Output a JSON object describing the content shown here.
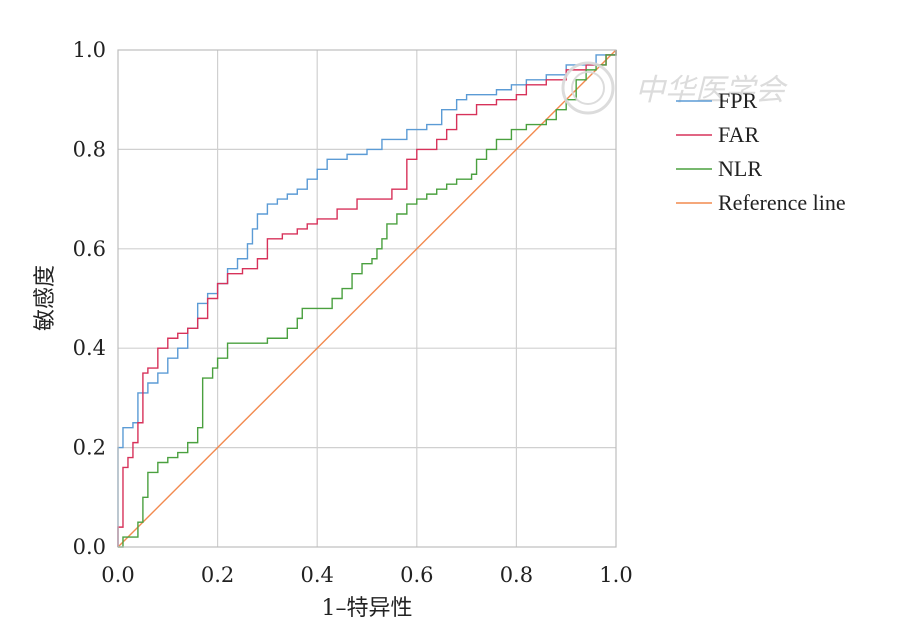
{
  "chart_data": {
    "type": "line",
    "xlabel": "1–特异性",
    "ylabel": "敏感度",
    "xlim": [
      0,
      1
    ],
    "ylim": [
      0,
      1
    ],
    "xticks": [
      "0.0",
      "0.2",
      "0.4",
      "0.6",
      "0.8",
      "1.0"
    ],
    "yticks": [
      "0.0",
      "0.2",
      "0.4",
      "0.6",
      "0.8",
      "1.0"
    ],
    "grid": true,
    "legend_position": "right",
    "series": [
      {
        "name": "FPR",
        "color": "#5b9bd5",
        "step": true,
        "points": [
          [
            0,
            0
          ],
          [
            0,
            0.2
          ],
          [
            0.01,
            0.24
          ],
          [
            0.03,
            0.25
          ],
          [
            0.04,
            0.31
          ],
          [
            0.06,
            0.33
          ],
          [
            0.08,
            0.35
          ],
          [
            0.1,
            0.38
          ],
          [
            0.12,
            0.4
          ],
          [
            0.14,
            0.44
          ],
          [
            0.16,
            0.49
          ],
          [
            0.18,
            0.51
          ],
          [
            0.2,
            0.53
          ],
          [
            0.22,
            0.56
          ],
          [
            0.24,
            0.58
          ],
          [
            0.26,
            0.61
          ],
          [
            0.27,
            0.64
          ],
          [
            0.28,
            0.67
          ],
          [
            0.3,
            0.69
          ],
          [
            0.32,
            0.7
          ],
          [
            0.34,
            0.71
          ],
          [
            0.36,
            0.72
          ],
          [
            0.38,
            0.74
          ],
          [
            0.4,
            0.76
          ],
          [
            0.42,
            0.78
          ],
          [
            0.46,
            0.79
          ],
          [
            0.5,
            0.8
          ],
          [
            0.53,
            0.82
          ],
          [
            0.58,
            0.84
          ],
          [
            0.62,
            0.85
          ],
          [
            0.65,
            0.88
          ],
          [
            0.68,
            0.9
          ],
          [
            0.7,
            0.91
          ],
          [
            0.76,
            0.92
          ],
          [
            0.79,
            0.93
          ],
          [
            0.82,
            0.94
          ],
          [
            0.86,
            0.95
          ],
          [
            0.9,
            0.97
          ],
          [
            0.96,
            0.99
          ],
          [
            1.0,
            1.0
          ]
        ]
      },
      {
        "name": "FAR",
        "color": "#d7325a",
        "step": true,
        "points": [
          [
            0,
            0
          ],
          [
            0,
            0.04
          ],
          [
            0.01,
            0.16
          ],
          [
            0.02,
            0.18
          ],
          [
            0.03,
            0.21
          ],
          [
            0.04,
            0.25
          ],
          [
            0.05,
            0.35
          ],
          [
            0.06,
            0.36
          ],
          [
            0.08,
            0.4
          ],
          [
            0.1,
            0.42
          ],
          [
            0.12,
            0.43
          ],
          [
            0.14,
            0.44
          ],
          [
            0.16,
            0.46
          ],
          [
            0.18,
            0.5
          ],
          [
            0.2,
            0.53
          ],
          [
            0.22,
            0.55
          ],
          [
            0.25,
            0.56
          ],
          [
            0.28,
            0.58
          ],
          [
            0.3,
            0.62
          ],
          [
            0.33,
            0.63
          ],
          [
            0.36,
            0.64
          ],
          [
            0.38,
            0.65
          ],
          [
            0.4,
            0.66
          ],
          [
            0.44,
            0.68
          ],
          [
            0.48,
            0.7
          ],
          [
            0.52,
            0.7
          ],
          [
            0.55,
            0.72
          ],
          [
            0.58,
            0.78
          ],
          [
            0.6,
            0.8
          ],
          [
            0.64,
            0.82
          ],
          [
            0.66,
            0.84
          ],
          [
            0.68,
            0.87
          ],
          [
            0.72,
            0.89
          ],
          [
            0.76,
            0.9
          ],
          [
            0.8,
            0.91
          ],
          [
            0.82,
            0.93
          ],
          [
            0.86,
            0.94
          ],
          [
            0.9,
            0.96
          ],
          [
            0.94,
            0.97
          ],
          [
            0.98,
            0.99
          ],
          [
            1.0,
            1.0
          ]
        ]
      },
      {
        "name": "NLR",
        "color": "#4aa03f",
        "step": true,
        "points": [
          [
            0,
            0
          ],
          [
            0.01,
            0.02
          ],
          [
            0.03,
            0.02
          ],
          [
            0.04,
            0.05
          ],
          [
            0.05,
            0.1
          ],
          [
            0.06,
            0.15
          ],
          [
            0.08,
            0.17
          ],
          [
            0.1,
            0.18
          ],
          [
            0.12,
            0.19
          ],
          [
            0.14,
            0.21
          ],
          [
            0.16,
            0.24
          ],
          [
            0.17,
            0.34
          ],
          [
            0.19,
            0.36
          ],
          [
            0.2,
            0.38
          ],
          [
            0.22,
            0.41
          ],
          [
            0.26,
            0.41
          ],
          [
            0.3,
            0.42
          ],
          [
            0.34,
            0.44
          ],
          [
            0.36,
            0.46
          ],
          [
            0.37,
            0.48
          ],
          [
            0.41,
            0.48
          ],
          [
            0.43,
            0.5
          ],
          [
            0.45,
            0.52
          ],
          [
            0.47,
            0.55
          ],
          [
            0.49,
            0.57
          ],
          [
            0.51,
            0.58
          ],
          [
            0.52,
            0.6
          ],
          [
            0.53,
            0.62
          ],
          [
            0.54,
            0.65
          ],
          [
            0.56,
            0.67
          ],
          [
            0.58,
            0.69
          ],
          [
            0.6,
            0.7
          ],
          [
            0.62,
            0.71
          ],
          [
            0.64,
            0.72
          ],
          [
            0.66,
            0.73
          ],
          [
            0.68,
            0.74
          ],
          [
            0.71,
            0.75
          ],
          [
            0.72,
            0.78
          ],
          [
            0.74,
            0.8
          ],
          [
            0.76,
            0.82
          ],
          [
            0.79,
            0.84
          ],
          [
            0.82,
            0.85
          ],
          [
            0.86,
            0.86
          ],
          [
            0.88,
            0.88
          ],
          [
            0.9,
            0.9
          ],
          [
            0.92,
            0.94
          ],
          [
            0.94,
            0.96
          ],
          [
            0.96,
            0.97
          ],
          [
            0.98,
            0.99
          ],
          [
            1.0,
            1.0
          ]
        ]
      },
      {
        "name": "Reference line",
        "color": "#f28a4f",
        "step": false,
        "points": [
          [
            0,
            0
          ],
          [
            1,
            1
          ]
        ]
      }
    ]
  },
  "watermark": {
    "text": "中华医学会",
    "color": "#d9d9d9"
  }
}
